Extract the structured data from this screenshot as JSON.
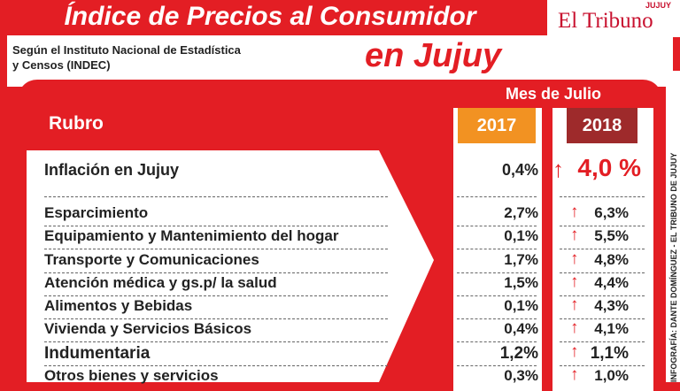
{
  "header": {
    "title": "Índice de Precios al Consumidor",
    "subtitle": "en Jujuy",
    "source": "Según  el Instituto Nacional de Estadística y Censos (INDEC)",
    "logo": "El Tribuno",
    "logo_region": "JUJUY"
  },
  "table": {
    "column_group": "Mes de Julio",
    "columns": [
      "Rubro",
      "2017",
      "2018"
    ],
    "rows": [
      [
        "Inflación en Jujuy",
        "0,4%",
        "4,0 %"
      ],
      [
        "Esparcimiento",
        "2,7%",
        "6,3%"
      ],
      [
        "Equipamiento y Mantenimiento del hogar",
        "0,1%",
        "5,5%"
      ],
      [
        "Transporte   y Comunicaciones",
        "1,7%",
        "4,8%"
      ],
      [
        "Atención médica y gs.p/ la salud",
        "1,5%",
        "4,4%"
      ],
      [
        "Alimentos y  Bebidas",
        "0,1%",
        "4,3%"
      ],
      [
        "Vivienda y Servicios Básicos",
        "0,4%",
        "4,1%"
      ],
      [
        "Indumentaria",
        "1,2%",
        "1,1%"
      ],
      [
        "Otros bienes y servicios",
        "0,3%",
        "1,0%"
      ]
    ]
  },
  "credit": "INFOGRAFÍA: DANTE DOMÍNGUEZ - EL TRIBUNO DE JUJUY"
}
